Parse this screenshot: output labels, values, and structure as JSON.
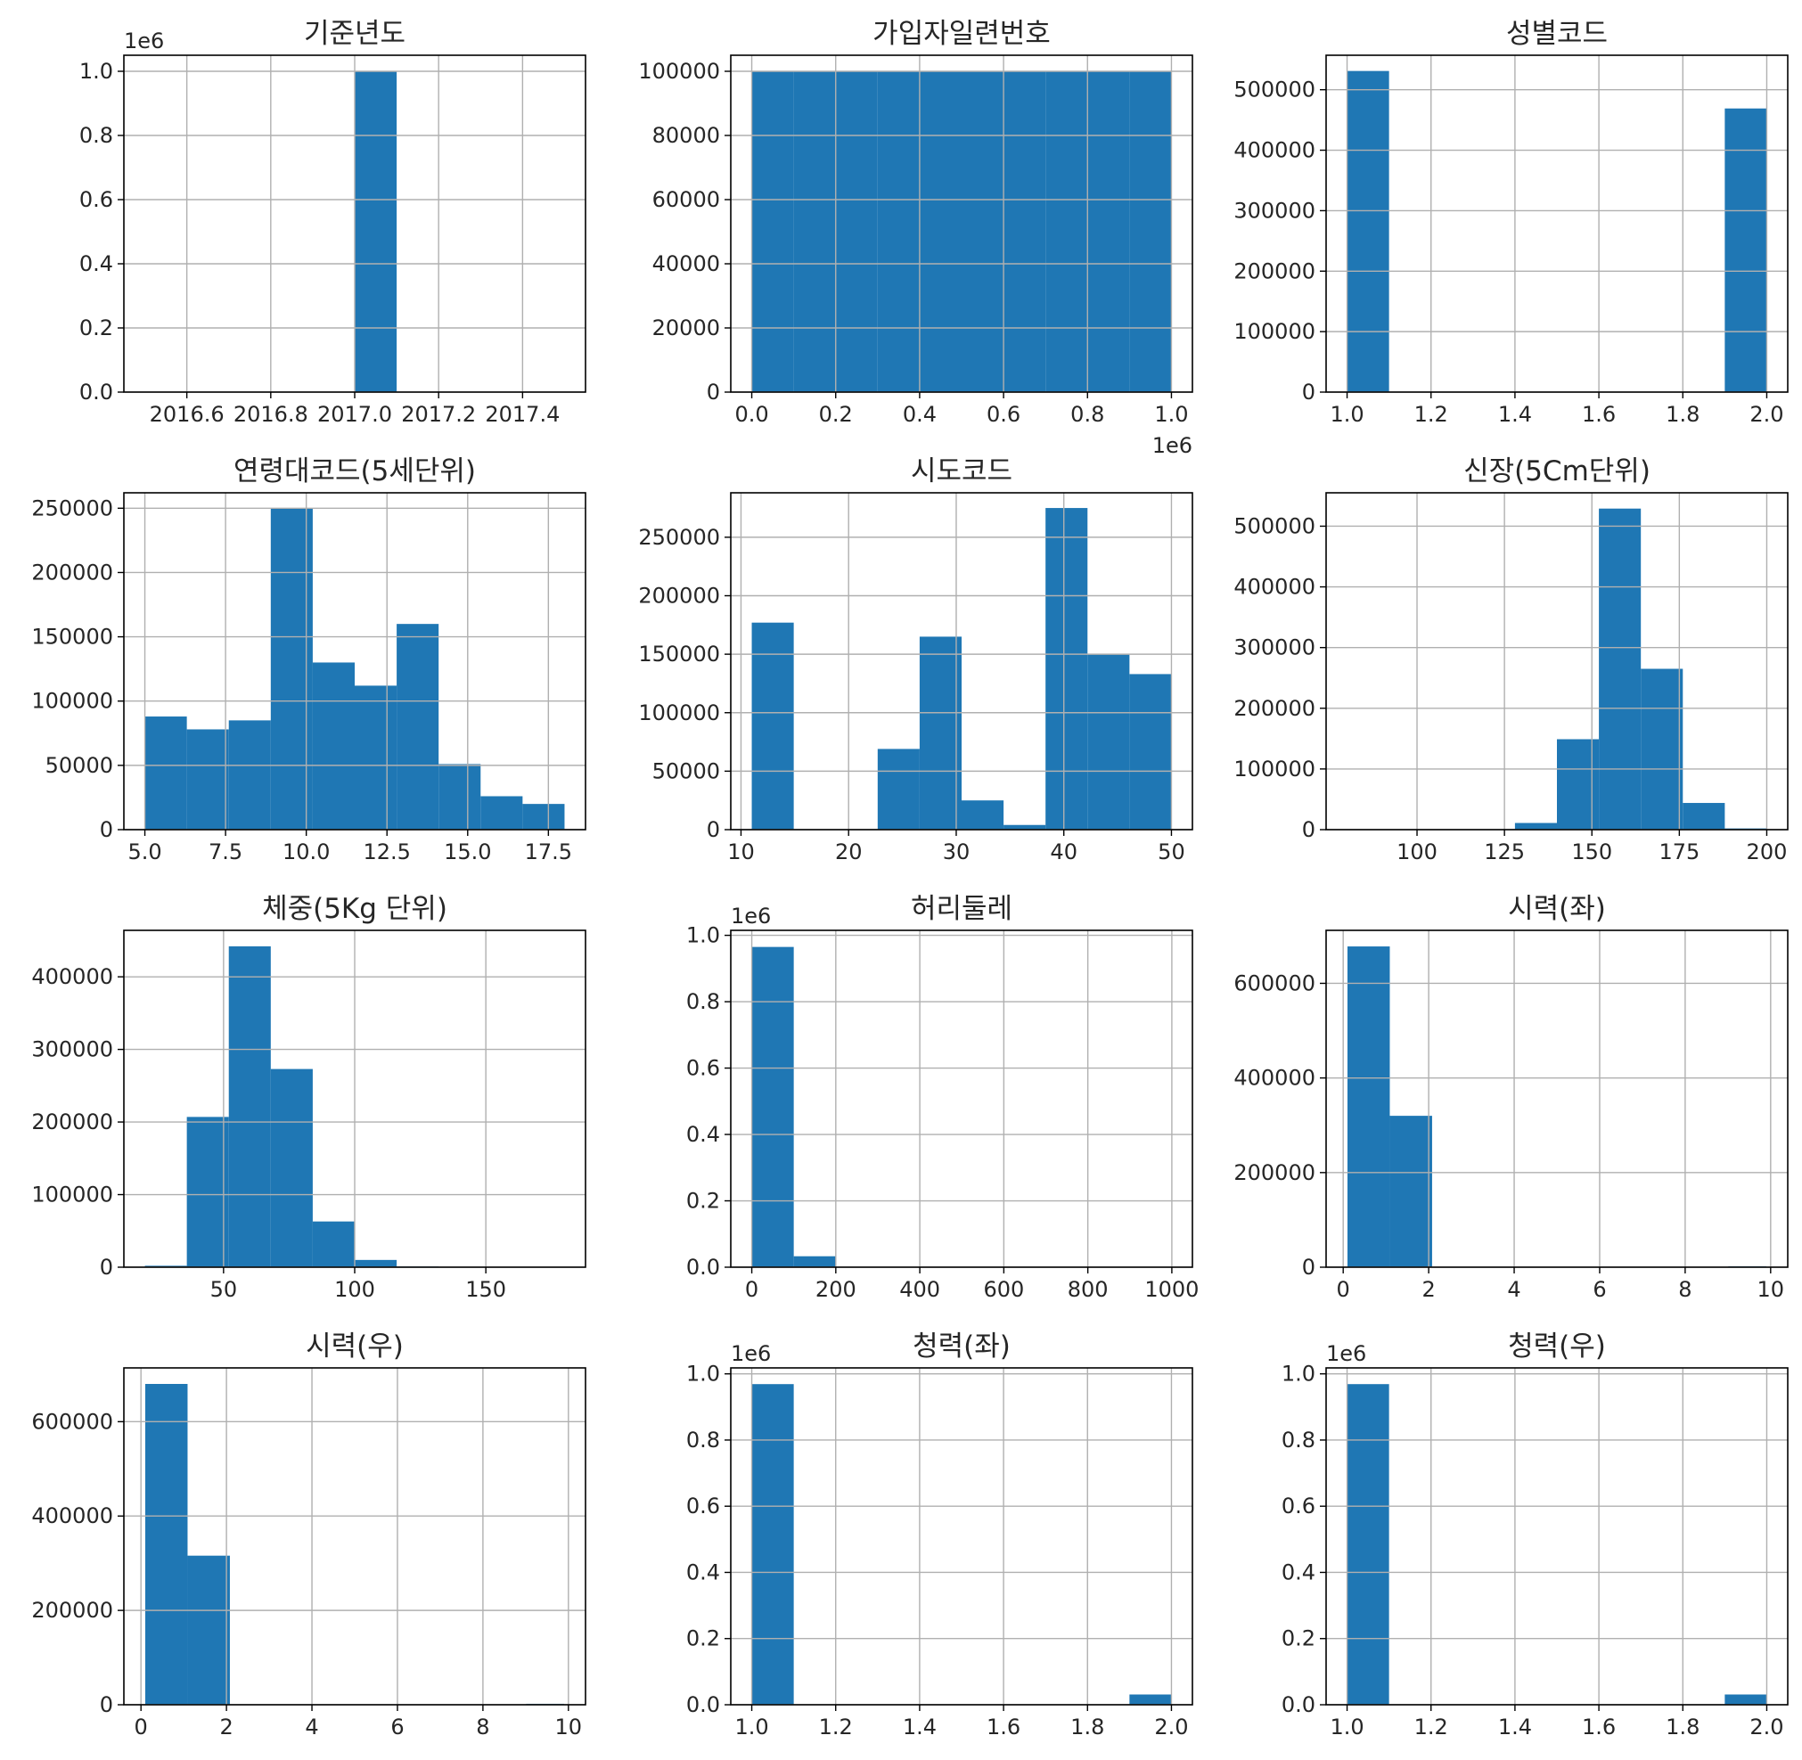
{
  "figure": {
    "bar_color": "#1f77b4",
    "grid_color": "#b0b0b0",
    "axis_color": "#000000"
  },
  "chart_data": [
    {
      "type": "bar",
      "title": "기준년도",
      "bins": [
        2016.5,
        2016.6,
        2016.7,
        2016.8,
        2016.9,
        2017.0,
        2017.1,
        2017.2,
        2017.3,
        2017.4,
        2017.5
      ],
      "counts": [
        0,
        0,
        0,
        0,
        0,
        1000000,
        0,
        0,
        0,
        0
      ],
      "xlim": [
        2016.45,
        2017.55
      ],
      "ylim": [
        0,
        1050000
      ],
      "grid": true,
      "xticks": [
        2016.6,
        2016.8,
        2017.0,
        2017.2,
        2017.4
      ],
      "xtick_labels": [
        "2016.6",
        "2016.8",
        "2017.0",
        "2017.2",
        "2017.4"
      ],
      "yticks": [
        0,
        200000,
        400000,
        600000,
        800000,
        1000000
      ],
      "ytick_labels": [
        "0.0",
        "0.2",
        "0.4",
        "0.6",
        "0.8",
        "1.0"
      ],
      "y_offset": "1e6"
    },
    {
      "type": "bar",
      "title": "가입자일련번호",
      "bins": [
        1,
        100001,
        200001,
        300001,
        400001,
        500001,
        600001,
        700001,
        800001,
        900001,
        1000001
      ],
      "counts": [
        100000,
        100000,
        100000,
        100000,
        100000,
        100000,
        100000,
        100000,
        100000,
        100000
      ],
      "xlim": [
        -50000,
        1050000
      ],
      "ylim": [
        0,
        105000
      ],
      "grid": true,
      "xticks": [
        0,
        200000,
        400000,
        600000,
        800000,
        1000000
      ],
      "xtick_labels": [
        "0.0",
        "0.2",
        "0.4",
        "0.6",
        "0.8",
        "1.0"
      ],
      "x_offset": "1e6",
      "yticks": [
        0,
        20000,
        40000,
        60000,
        80000,
        100000
      ],
      "ytick_labels": [
        "0",
        "20000",
        "40000",
        "60000",
        "80000",
        "100000"
      ]
    },
    {
      "type": "bar",
      "title": "성별코드",
      "bins": [
        1.0,
        1.1,
        1.2,
        1.3,
        1.4,
        1.5,
        1.6,
        1.7,
        1.8,
        1.9,
        2.0
      ],
      "counts": [
        531000,
        0,
        0,
        0,
        0,
        0,
        0,
        0,
        0,
        469000
      ],
      "xlim": [
        0.95,
        2.05
      ],
      "ylim": [
        0,
        557000
      ],
      "grid": true,
      "xticks": [
        1.0,
        1.2,
        1.4,
        1.6,
        1.8,
        2.0
      ],
      "xtick_labels": [
        "1.0",
        "1.2",
        "1.4",
        "1.6",
        "1.8",
        "2.0"
      ],
      "yticks": [
        0,
        100000,
        200000,
        300000,
        400000,
        500000
      ],
      "ytick_labels": [
        "0",
        "100000",
        "200000",
        "300000",
        "400000",
        "500000"
      ]
    },
    {
      "type": "bar",
      "title": "연령대코드(5세단위)",
      "bins": [
        5.0,
        6.3,
        7.6,
        8.9,
        10.2,
        11.5,
        12.8,
        14.1,
        15.4,
        16.7,
        18.0
      ],
      "counts": [
        88000,
        78000,
        85000,
        250000,
        130000,
        112000,
        160000,
        51000,
        26000,
        20000
      ],
      "xlim": [
        4.35,
        18.65
      ],
      "ylim": [
        0,
        262000
      ],
      "grid": true,
      "xticks": [
        5.0,
        7.5,
        10.0,
        12.5,
        15.0,
        17.5
      ],
      "xtick_labels": [
        "5.0",
        "7.5",
        "10.0",
        "12.5",
        "15.0",
        "17.5"
      ],
      "yticks": [
        0,
        50000,
        100000,
        150000,
        200000,
        250000
      ],
      "ytick_labels": [
        "0",
        "50000",
        "100000",
        "150000",
        "200000",
        "250000"
      ]
    },
    {
      "type": "bar",
      "title": "시도코드",
      "bins": [
        11.0,
        14.9,
        18.8,
        22.7,
        26.6,
        30.5,
        34.4,
        38.3,
        42.2,
        46.1,
        50.0
      ],
      "counts": [
        177000,
        0,
        0,
        69000,
        165000,
        25000,
        4000,
        275000,
        150000,
        133000
      ],
      "xlim": [
        9.05,
        51.95
      ],
      "ylim": [
        0,
        288000
      ],
      "grid": true,
      "xticks": [
        10,
        20,
        30,
        40,
        50
      ],
      "xtick_labels": [
        "10",
        "20",
        "30",
        "40",
        "50"
      ],
      "yticks": [
        0,
        50000,
        100000,
        150000,
        200000,
        250000
      ],
      "ytick_labels": [
        "0",
        "50000",
        "100000",
        "150000",
        "200000",
        "250000"
      ]
    },
    {
      "type": "bar",
      "title": "신장(5Cm단위)",
      "bins": [
        80,
        92,
        104,
        116,
        128,
        140,
        152,
        164,
        176,
        188,
        200
      ],
      "counts": [
        0,
        0,
        0,
        0,
        11000,
        149000,
        529000,
        265000,
        44000,
        2000
      ],
      "xlim": [
        74,
        206
      ],
      "ylim": [
        0,
        555000
      ],
      "grid": true,
      "xticks": [
        100,
        125,
        150,
        175,
        200
      ],
      "xtick_labels": [
        "100",
        "125",
        "150",
        "175",
        "200"
      ],
      "yticks": [
        0,
        100000,
        200000,
        300000,
        400000,
        500000
      ],
      "ytick_labels": [
        "0",
        "100000",
        "200000",
        "300000",
        "400000",
        "500000"
      ]
    },
    {
      "type": "bar",
      "title": "체중(5Kg 단위)",
      "bins": [
        20,
        36,
        52,
        68,
        84,
        100,
        116,
        132,
        148,
        164,
        180
      ],
      "counts": [
        2000,
        207000,
        442000,
        273000,
        63000,
        10000,
        1000,
        200,
        0,
        0
      ],
      "xlim": [
        12,
        188
      ],
      "ylim": [
        0,
        464000
      ],
      "grid": true,
      "xticks": [
        50,
        100,
        150
      ],
      "xtick_labels": [
        "50",
        "100",
        "150"
      ],
      "yticks": [
        0,
        100000,
        200000,
        300000,
        400000
      ],
      "ytick_labels": [
        "0",
        "100000",
        "200000",
        "300000",
        "400000"
      ]
    },
    {
      "type": "bar",
      "title": "허리둘레",
      "bins": [
        0,
        99.9,
        199.8,
        299.7,
        399.6,
        499.5,
        599.4,
        699.3,
        799.2,
        899.1,
        999
      ],
      "counts": [
        965000,
        33000,
        200,
        0,
        0,
        0,
        0,
        0,
        0,
        200
      ],
      "xlim": [
        -50,
        1049
      ],
      "ylim": [
        0,
        1015000
      ],
      "grid": true,
      "xticks": [
        0,
        200,
        400,
        600,
        800,
        1000
      ],
      "xtick_labels": [
        "0",
        "200",
        "400",
        "600",
        "800",
        "1000"
      ],
      "yticks": [
        0,
        200000,
        400000,
        600000,
        800000,
        1000000
      ],
      "ytick_labels": [
        "0.0",
        "0.2",
        "0.4",
        "0.6",
        "0.8",
        "1.0"
      ],
      "y_offset": "1e6"
    },
    {
      "type": "bar",
      "title": "시력(좌)",
      "bins": [
        0.1,
        1.09,
        2.08,
        3.07,
        4.06,
        5.05,
        6.04,
        7.03,
        8.02,
        9.01,
        9.9
      ],
      "counts": [
        678000,
        320000,
        0,
        0,
        0,
        0,
        0,
        0,
        0,
        2000
      ],
      "xlim": [
        -0.4,
        10.4
      ],
      "ylim": [
        0,
        712000
      ],
      "grid": true,
      "xticks": [
        0,
        2,
        4,
        6,
        8,
        10
      ],
      "xtick_labels": [
        "0",
        "2",
        "4",
        "6",
        "8",
        "10"
      ],
      "yticks": [
        0,
        200000,
        400000,
        600000
      ],
      "ytick_labels": [
        "0",
        "200000",
        "400000",
        "600000"
      ]
    },
    {
      "type": "bar",
      "title": "시력(우)",
      "bins": [
        0.1,
        1.09,
        2.08,
        3.07,
        4.06,
        5.05,
        6.04,
        7.03,
        8.02,
        9.01,
        9.9
      ],
      "counts": [
        680000,
        316000,
        0,
        0,
        0,
        0,
        0,
        0,
        0,
        2000
      ],
      "xlim": [
        -0.4,
        10.4
      ],
      "ylim": [
        0,
        714000
      ],
      "grid": true,
      "xticks": [
        0,
        2,
        4,
        6,
        8,
        10
      ],
      "xtick_labels": [
        "0",
        "2",
        "4",
        "6",
        "8",
        "10"
      ],
      "yticks": [
        0,
        200000,
        400000,
        600000
      ],
      "ytick_labels": [
        "0",
        "200000",
        "400000",
        "600000"
      ]
    },
    {
      "type": "bar",
      "title": "청력(좌)",
      "bins": [
        1.0,
        1.1,
        1.2,
        1.3,
        1.4,
        1.5,
        1.6,
        1.7,
        1.8,
        1.9,
        2.0
      ],
      "counts": [
        969000,
        0,
        0,
        0,
        0,
        0,
        0,
        0,
        0,
        31000
      ],
      "xlim": [
        0.95,
        2.05
      ],
      "ylim": [
        0,
        1018000
      ],
      "grid": true,
      "xticks": [
        1.0,
        1.2,
        1.4,
        1.6,
        1.8,
        2.0
      ],
      "xtick_labels": [
        "1.0",
        "1.2",
        "1.4",
        "1.6",
        "1.8",
        "2.0"
      ],
      "yticks": [
        0,
        200000,
        400000,
        600000,
        800000,
        1000000
      ],
      "ytick_labels": [
        "0.0",
        "0.2",
        "0.4",
        "0.6",
        "0.8",
        "1.0"
      ],
      "y_offset": "1e6"
    },
    {
      "type": "bar",
      "title": "청력(우)",
      "bins": [
        1.0,
        1.1,
        1.2,
        1.3,
        1.4,
        1.5,
        1.6,
        1.7,
        1.8,
        1.9,
        2.0
      ],
      "counts": [
        969000,
        0,
        0,
        0,
        0,
        0,
        0,
        0,
        0,
        31000
      ],
      "xlim": [
        0.95,
        2.05
      ],
      "ylim": [
        0,
        1018000
      ],
      "grid": true,
      "xticks": [
        1.0,
        1.2,
        1.4,
        1.6,
        1.8,
        2.0
      ],
      "xtick_labels": [
        "1.0",
        "1.2",
        "1.4",
        "1.6",
        "1.8",
        "2.0"
      ],
      "yticks": [
        0,
        200000,
        400000,
        600000,
        800000,
        1000000
      ],
      "ytick_labels": [
        "0.0",
        "0.2",
        "0.4",
        "0.6",
        "0.8",
        "1.0"
      ],
      "y_offset": "1e6"
    }
  ]
}
